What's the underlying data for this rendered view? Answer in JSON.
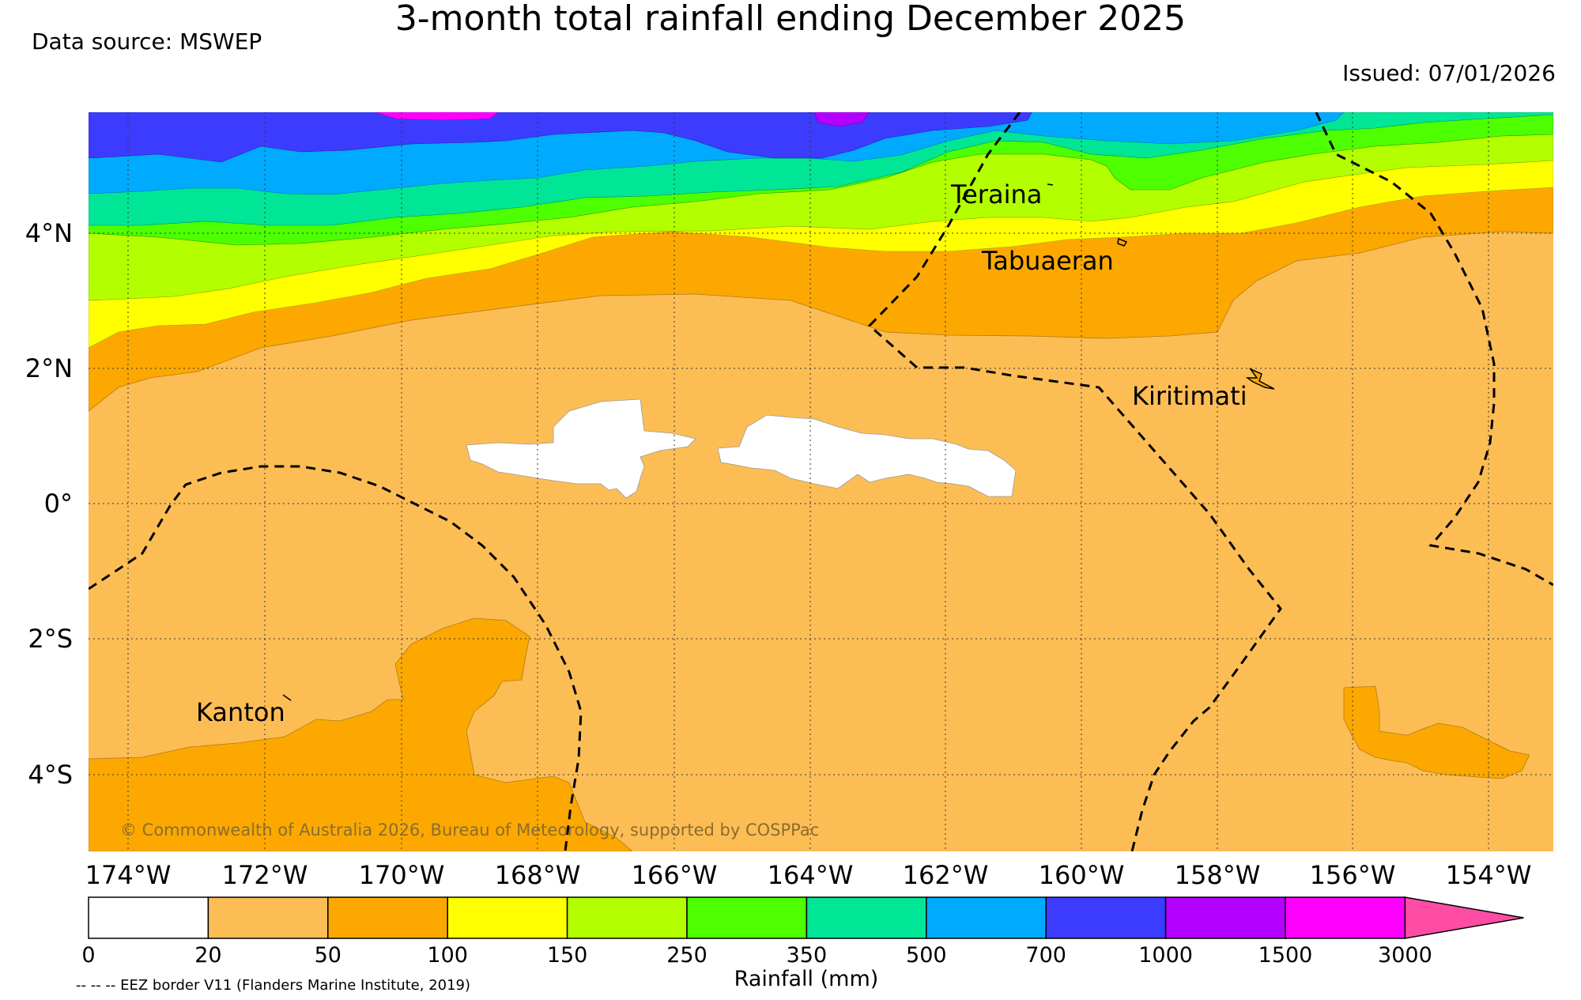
{
  "title": "3-month total rainfall ending December 2025",
  "data_source": "Data source: MSWEP",
  "issued": "Issued: 07/01/2026",
  "copyright": "© Commonwealth of Australia 2026, Bureau of Meteorology, supported by COSPPac",
  "footnote": "-- -- -- EEZ border V11 (Flanders Marine Institute, 2019)",
  "map": {
    "lat_labels": [
      "4°N",
      "2°N",
      "0°",
      "2°S",
      "4°S"
    ],
    "lon_labels": [
      "174°W",
      "172°W",
      "170°W",
      "168°W",
      "166°W",
      "164°W",
      "162°W",
      "160°W",
      "158°W",
      "156°W",
      "154°W"
    ],
    "places": [
      "Teraina",
      "Tabuaeran",
      "Kiritimati",
      "Kanton"
    ]
  },
  "colorbar": {
    "label": "Rainfall (mm)",
    "ticks": [
      "0",
      "20",
      "50",
      "100",
      "150",
      "250",
      "350",
      "500",
      "700",
      "1000",
      "1500",
      "3000"
    ],
    "colors": [
      "#ffffff",
      "#fdbd55",
      "#fca800",
      "#ffff00",
      "#b3ff00",
      "#4dff00",
      "#00e696",
      "#00aaff",
      "#3c3cff",
      "#b400ff",
      "#ff00ff",
      "#ff4da6"
    ]
  }
}
